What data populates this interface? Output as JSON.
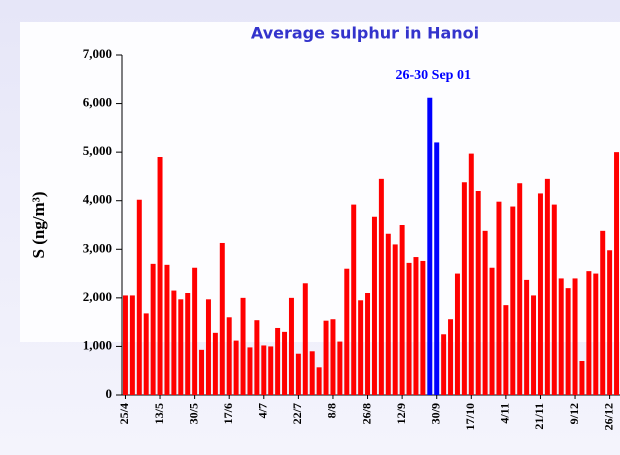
{
  "chart_data": {
    "type": "bar",
    "title": "Average sulphur in Hanoi",
    "annotation": "26-30 Sep 01",
    "y_label": "S (ng/m³)",
    "categories": [
      "25/4",
      null,
      null,
      null,
      null,
      "13/5",
      null,
      null,
      null,
      null,
      "30/5",
      null,
      null,
      null,
      null,
      "17/6",
      null,
      null,
      null,
      null,
      "4/7",
      null,
      null,
      null,
      null,
      "22/7",
      null,
      null,
      null,
      null,
      "8/8",
      null,
      null,
      null,
      null,
      "26/8",
      null,
      null,
      null,
      null,
      "12/9",
      null,
      null,
      null,
      null,
      "30/9",
      null,
      null,
      null,
      null,
      "17/10",
      null,
      null,
      null,
      null,
      "4/11",
      null,
      null,
      null,
      null,
      "21/11",
      null,
      null,
      null,
      null,
      "9/12",
      null,
      null,
      null,
      null,
      "26/12",
      null
    ],
    "values": [
      2050,
      2050,
      4020,
      1680,
      2700,
      4900,
      2680,
      2150,
      1970,
      2100,
      2620,
      930,
      1970,
      1280,
      3130,
      1600,
      1120,
      2000,
      980,
      1540,
      1020,
      1000,
      1380,
      1300,
      2000,
      850,
      2300,
      900,
      570,
      1530,
      1560,
      1100,
      2600,
      3920,
      1950,
      2100,
      3670,
      4450,
      3320,
      3100,
      3500,
      2720,
      2840,
      2760,
      6120,
      5200,
      1250,
      1560,
      2500,
      4380,
      4970,
      4200,
      3380,
      2620,
      3980,
      1850,
      3880,
      4360,
      2370,
      2050,
      4150,
      4450,
      3920,
      2400,
      2200,
      2400,
      700,
      2550,
      2500,
      3380,
      2980,
      5000
    ],
    "colors": [
      "#ff0000",
      "#ff0000",
      "#ff0000",
      "#ff0000",
      "#ff0000",
      "#ff0000",
      "#ff0000",
      "#ff0000",
      "#ff0000",
      "#ff0000",
      "#ff0000",
      "#ff0000",
      "#ff0000",
      "#ff0000",
      "#ff0000",
      "#ff0000",
      "#ff0000",
      "#ff0000",
      "#ff0000",
      "#ff0000",
      "#ff0000",
      "#ff0000",
      "#ff0000",
      "#ff0000",
      "#ff0000",
      "#ff0000",
      "#ff0000",
      "#ff0000",
      "#ff0000",
      "#ff0000",
      "#ff0000",
      "#ff0000",
      "#ff0000",
      "#ff0000",
      "#ff0000",
      "#ff0000",
      "#ff0000",
      "#ff0000",
      "#ff0000",
      "#ff0000",
      "#ff0000",
      "#ff0000",
      "#ff0000",
      "#ff0000",
      "#0000ff",
      "#0000ff",
      "#ff0000",
      "#ff0000",
      "#ff0000",
      "#ff0000",
      "#ff0000",
      "#ff0000",
      "#ff0000",
      "#ff0000",
      "#ff0000",
      "#ff0000",
      "#ff0000",
      "#ff0000",
      "#ff0000",
      "#ff0000",
      "#ff0000",
      "#ff0000",
      "#ff0000",
      "#ff0000",
      "#ff0000",
      "#ff0000",
      "#ff0000",
      "#ff0000",
      "#ff0000",
      "#ff0000",
      "#ff0000",
      "#ff0000"
    ],
    "ylim": [
      0,
      7000
    ],
    "yticks": [
      0,
      {
        "value": 1000,
        "label": "1,000"
      },
      {
        "value": 2000,
        "label": "2,000"
      },
      {
        "value": 3000,
        "label": "3,000"
      },
      {
        "value": 4000,
        "label": "4,000"
      },
      {
        "value": 5000,
        "label": "5,000"
      },
      {
        "value": 6000,
        "label": "6,000"
      },
      {
        "value": 7000,
        "label": "7,000"
      }
    ],
    "grid": false
  }
}
